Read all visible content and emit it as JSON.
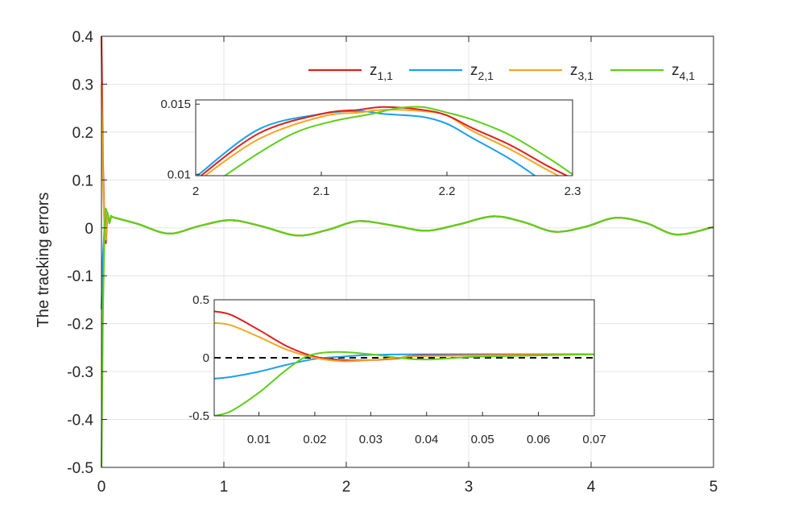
{
  "chart_data": [
    {
      "type": "line",
      "ylabel": "The tracking errors",
      "xlim": [
        0,
        5
      ],
      "ylim": [
        -0.5,
        0.4
      ],
      "grid": true,
      "legend_position": "top-right",
      "x_ticks": [
        "0",
        "1",
        "2",
        "3",
        "4",
        "5"
      ],
      "y_ticks": [
        "0.4",
        "0.3",
        "0.2",
        "0.1",
        "0",
        "-0.1",
        "-0.2",
        "-0.3",
        "-0.4",
        "-0.5"
      ],
      "series": [
        {
          "name": "z1,1",
          "base": "z",
          "sub": "1,1",
          "color": "#e02020",
          "initial": 0.4
        },
        {
          "name": "z2,1",
          "base": "z",
          "sub": "2,1",
          "color": "#1ca0ee",
          "initial": -0.17
        },
        {
          "name": "z3,1",
          "base": "z",
          "sub": "3,1",
          "color": "#f5a623",
          "initial": 0.3
        },
        {
          "name": "z4,1",
          "base": "z",
          "sub": "4,1",
          "color": "#5ecf1a",
          "initial": -0.5
        }
      ],
      "steady_state_curve": {
        "x": [
          0.1,
          0.3,
          0.55,
          0.8,
          1.05,
          1.3,
          1.6,
          1.85,
          2.1,
          2.4,
          2.65,
          2.9,
          3.2,
          3.45,
          3.7,
          3.95,
          4.2,
          4.45,
          4.7,
          5.0
        ],
        "y": [
          0.022,
          0.008,
          -0.012,
          0.004,
          0.016,
          0.004,
          -0.016,
          -0.004,
          0.014,
          0.004,
          -0.006,
          0.006,
          0.024,
          0.012,
          -0.008,
          0.002,
          0.021,
          0.01,
          -0.014,
          0.002
        ]
      }
    },
    {
      "type": "line",
      "role": "inset-top",
      "xlim": [
        2,
        2.3
      ],
      "ylim": [
        0.0099,
        0.0153
      ],
      "x_ticks": [
        "2",
        "2.1",
        "2.2",
        "2.3"
      ],
      "y_ticks": [
        "0.015",
        "0.01"
      ],
      "series": [
        {
          "name": "z1,1",
          "color": "#e02020",
          "x": [
            2.0,
            2.05,
            2.1,
            2.13,
            2.15,
            2.18,
            2.2,
            2.22,
            2.25,
            2.28,
            2.3
          ],
          "y": [
            0.0096,
            0.0129,
            0.0143,
            0.0146,
            0.0148,
            0.0146,
            0.0142,
            0.0133,
            0.0121,
            0.0106,
            0.0097
          ]
        },
        {
          "name": "z2,1",
          "color": "#1ca0ee",
          "x": [
            2.0,
            2.05,
            2.1,
            2.13,
            2.15,
            2.18,
            2.2,
            2.22,
            2.25,
            2.27
          ],
          "y": [
            0.0098,
            0.0132,
            0.0143,
            0.0145,
            0.0143,
            0.0141,
            0.0136,
            0.0126,
            0.0111,
            0.0099
          ]
        },
        {
          "name": "z3,1",
          "color": "#f5a623",
          "x": [
            2.0,
            2.05,
            2.1,
            2.13,
            2.15,
            2.18,
            2.2,
            2.22,
            2.25,
            2.28,
            2.3
          ],
          "y": [
            0.0094,
            0.0125,
            0.0141,
            0.0144,
            0.0146,
            0.0145,
            0.0142,
            0.0131,
            0.0118,
            0.0103,
            0.0094
          ]
        },
        {
          "name": "z4,1",
          "color": "#5ecf1a",
          "x": [
            2.02,
            2.05,
            2.08,
            2.11,
            2.14,
            2.16,
            2.18,
            2.2,
            2.22,
            2.25,
            2.28,
            2.3
          ],
          "y": [
            0.0097,
            0.0115,
            0.013,
            0.0138,
            0.0143,
            0.0147,
            0.0148,
            0.0144,
            0.0139,
            0.0128,
            0.0112,
            0.01
          ]
        }
      ]
    },
    {
      "type": "line",
      "role": "inset-bottom",
      "xlim": [
        0.002,
        0.07
      ],
      "ylim": [
        -0.5,
        0.5
      ],
      "x_ticks": [
        "0.01",
        "0.02",
        "0.03",
        "0.04",
        "0.05",
        "0.06",
        "0.07"
      ],
      "y_ticks": [
        "0.5",
        "0",
        "-0.5"
      ],
      "reference_line": 0,
      "series": [
        {
          "name": "z1,1",
          "color": "#e02020",
          "x": [
            0.002,
            0.005,
            0.01,
            0.015,
            0.02,
            0.025,
            0.03,
            0.035,
            0.04,
            0.07
          ],
          "y": [
            0.4,
            0.37,
            0.24,
            0.1,
            0.01,
            -0.02,
            -0.02,
            -0.005,
            0.02,
            0.03
          ]
        },
        {
          "name": "z2,1",
          "color": "#1ca0ee",
          "x": [
            0.002,
            0.005,
            0.01,
            0.015,
            0.02,
            0.025,
            0.03,
            0.04,
            0.07
          ],
          "y": [
            -0.18,
            -0.165,
            -0.12,
            -0.06,
            -0.01,
            0.01,
            0.025,
            0.03,
            0.03
          ]
        },
        {
          "name": "z3,1",
          "color": "#f5a623",
          "x": [
            0.002,
            0.005,
            0.01,
            0.015,
            0.02,
            0.025,
            0.03,
            0.035,
            0.04,
            0.07
          ],
          "y": [
            0.3,
            0.28,
            0.18,
            0.07,
            0.0,
            -0.03,
            -0.02,
            0.0,
            0.015,
            0.03
          ]
        },
        {
          "name": "z4,1",
          "color": "#5ecf1a",
          "x": [
            0.002,
            0.005,
            0.01,
            0.015,
            0.019,
            0.024,
            0.03,
            0.035,
            0.04,
            0.05,
            0.07
          ],
          "y": [
            -0.5,
            -0.46,
            -0.3,
            -0.1,
            0.02,
            0.05,
            0.03,
            0.0,
            -0.015,
            0.01,
            0.03
          ]
        }
      ]
    }
  ]
}
